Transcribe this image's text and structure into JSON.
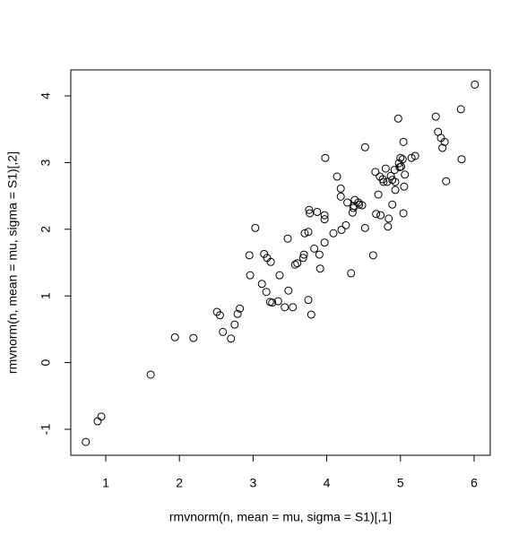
{
  "chart_data": {
    "type": "scatter",
    "xlabel": "rmvnorm(n, mean = mu, sigma = S1)[,1]",
    "ylabel": "rmvnorm(n, mean = mu, sigma = S1)[,2]",
    "color": "#000000",
    "xlim": [
      0.526,
      6.219
    ],
    "ylim": [
      -1.39,
      4.39
    ],
    "xticks": [
      1,
      2,
      3,
      4,
      5,
      6
    ],
    "yticks": [
      -1,
      0,
      1,
      2,
      3,
      4
    ],
    "x": [
      0.73,
      0.89,
      0.94,
      1.61,
      1.94,
      2.19,
      2.51,
      2.55,
      2.59,
      2.7,
      2.75,
      2.79,
      2.82,
      2.95,
      2.96,
      3.03,
      3.12,
      3.15,
      3.18,
      3.19,
      3.24,
      3.23,
      3.26,
      3.34,
      3.36,
      3.43,
      3.47,
      3.48,
      3.54,
      3.57,
      3.6,
      3.68,
      3.69,
      3.7,
      3.75,
      3.75,
      3.76,
      3.77,
      3.79,
      3.83,
      3.87,
      3.9,
      3.91,
      3.97,
      3.97,
      3.98,
      3.97,
      4.09,
      4.14,
      4.19,
      4.2,
      4.19,
      4.26,
      4.28,
      4.33,
      4.35,
      4.36,
      4.37,
      4.38,
      4.43,
      4.44,
      4.48,
      4.52,
      4.52,
      4.63,
      4.66,
      4.67,
      4.7,
      4.72,
      4.73,
      4.76,
      4.77,
      4.8,
      4.82,
      4.83,
      4.84,
      4.87,
      4.89,
      4.89,
      4.92,
      4.93,
      4.97,
      5.0,
      4.98,
      5.01,
      4.93,
      4.99,
      5.03,
      5.04,
      5.04,
      5.06,
      5.05,
      5.15,
      5.2,
      5.48,
      5.51,
      5.55,
      5.57,
      5.6,
      5.62,
      5.82,
      5.83,
      6.01
    ],
    "values": [
      -1.19,
      -0.88,
      -0.81,
      -0.18,
      0.38,
      0.37,
      0.76,
      0.71,
      0.46,
      0.36,
      0.57,
      0.73,
      0.81,
      1.61,
      1.31,
      2.02,
      1.18,
      1.63,
      1.06,
      1.57,
      1.51,
      0.91,
      0.9,
      0.92,
      1.31,
      0.83,
      1.86,
      1.08,
      0.83,
      1.47,
      1.49,
      1.57,
      1.62,
      1.94,
      0.94,
      1.96,
      2.29,
      2.24,
      0.72,
      1.71,
      2.26,
      1.62,
      1.41,
      1.8,
      2.15,
      3.07,
      2.21,
      1.94,
      2.79,
      2.49,
      1.99,
      2.61,
      2.06,
      2.4,
      1.34,
      2.25,
      2.32,
      2.35,
      2.44,
      2.4,
      2.37,
      2.36,
      3.23,
      2.02,
      1.61,
      2.86,
      2.23,
      2.52,
      2.79,
      2.21,
      2.75,
      2.71,
      2.91,
      2.71,
      2.04,
      2.16,
      2.8,
      2.37,
      2.74,
      2.89,
      2.71,
      3.66,
      3.07,
      2.99,
      2.94,
      2.59,
      2.93,
      3.05,
      3.31,
      2.24,
      2.82,
      2.64,
      3.07,
      3.1,
      3.69,
      3.46,
      3.37,
      3.22,
      3.31,
      2.72,
      3.8,
      3.05,
      4.17
    ]
  }
}
